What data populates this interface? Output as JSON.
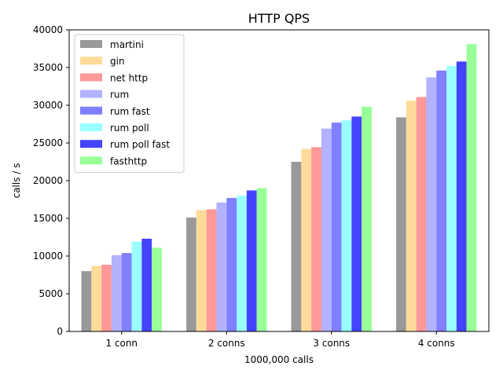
{
  "chart_data": {
    "type": "bar",
    "title": "HTTP QPS",
    "xlabel": "1000,000 calls",
    "ylabel": "calls / s",
    "ylim": [
      0,
      40000
    ],
    "yticks": [
      0,
      5000,
      10000,
      15000,
      20000,
      25000,
      30000,
      35000,
      40000
    ],
    "categories": [
      "1 conn",
      "2 conns",
      "3 conns",
      "4 conns"
    ],
    "grid": false,
    "legend_position": "top-left",
    "series": [
      {
        "name": "martini",
        "color": "#999999",
        "values": [
          8000,
          15100,
          22500,
          28400
        ]
      },
      {
        "name": "gin",
        "color": "#ffdb99",
        "values": [
          8700,
          16100,
          24200,
          30600
        ]
      },
      {
        "name": "net http",
        "color": "#ff9999",
        "values": [
          8850,
          16200,
          24450,
          31100
        ]
      },
      {
        "name": "rum",
        "color": "#b2b2ff",
        "values": [
          10100,
          17100,
          26900,
          33700
        ]
      },
      {
        "name": "rum fast",
        "color": "#7f7fff",
        "values": [
          10400,
          17700,
          27700,
          34600
        ]
      },
      {
        "name": "rum poll",
        "color": "#99ffff",
        "values": [
          11900,
          18000,
          28000,
          35200
        ]
      },
      {
        "name": "rum poll fast",
        "color": "#4444ff",
        "values": [
          12300,
          18700,
          28500,
          35800
        ]
      },
      {
        "name": "fasthttp",
        "color": "#99ff99",
        "values": [
          11100,
          19000,
          29800,
          38100
        ]
      }
    ]
  }
}
